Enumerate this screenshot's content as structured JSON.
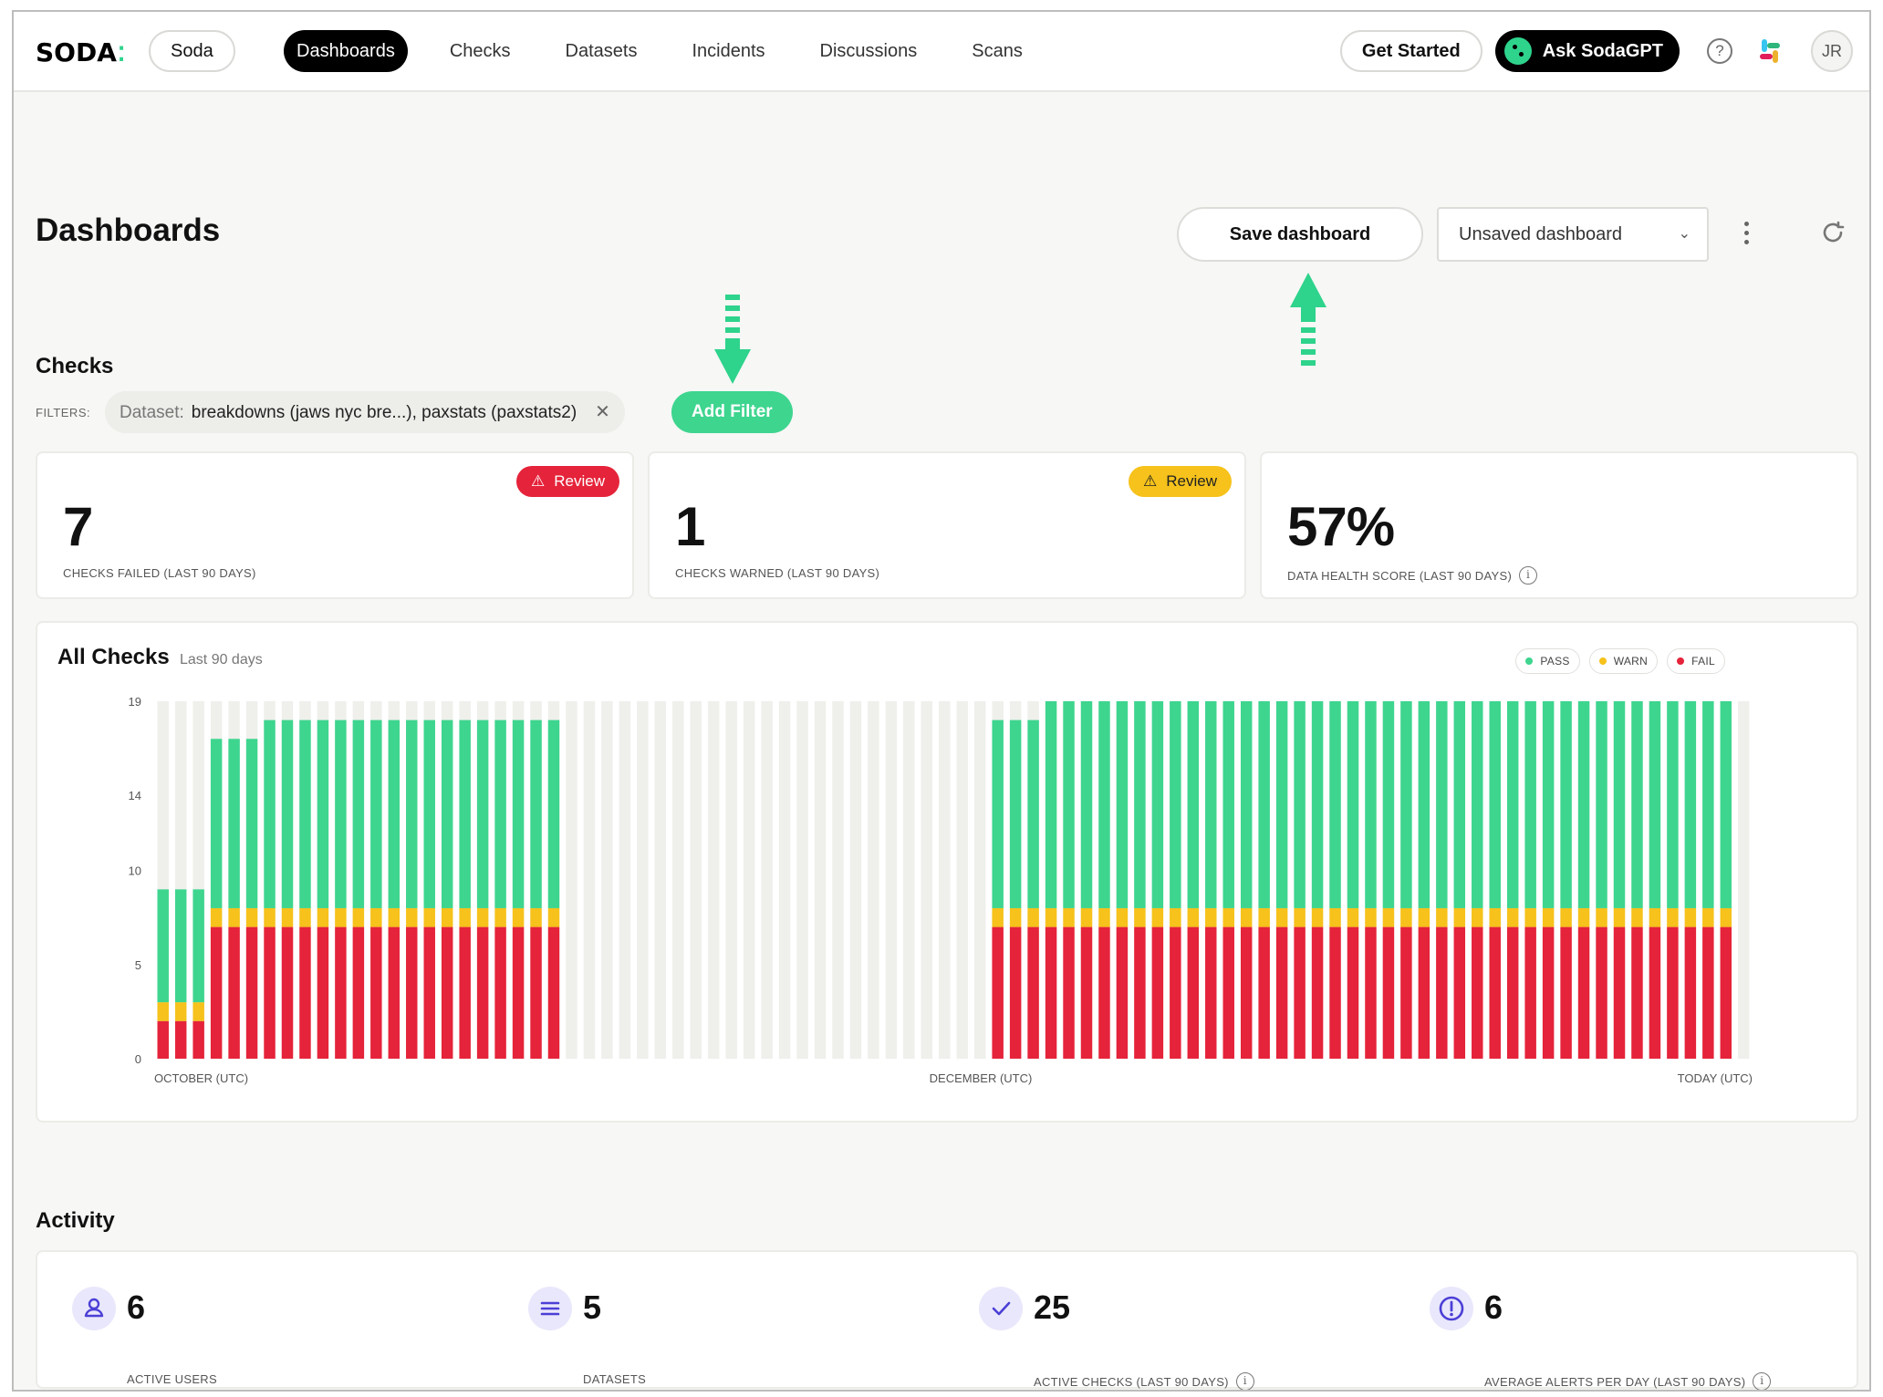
{
  "nav": {
    "logo": "SODA",
    "org": "Soda",
    "items": [
      {
        "label": "Dashboards",
        "active": true
      },
      {
        "label": "Checks",
        "active": false
      },
      {
        "label": "Datasets",
        "active": false
      },
      {
        "label": "Incidents",
        "active": false
      },
      {
        "label": "Discussions",
        "active": false
      },
      {
        "label": "Scans",
        "active": false
      }
    ],
    "get_started": "Get Started",
    "ask_gpt": "Ask SodaGPT",
    "avatar_initials": "JR",
    "icons": [
      "help-icon",
      "slack-icon"
    ]
  },
  "header": {
    "title": "Dashboards",
    "save_label": "Save dashboard",
    "dashboard_select": "Unsaved dashboard"
  },
  "checks": {
    "title": "Checks",
    "filters_label": "FILTERS:",
    "filter_key": "Dataset:",
    "filter_value": "breakdowns (jaws nyc bre...), paxstats (paxstats2)",
    "add_filter": "Add Filter",
    "metrics": [
      {
        "value": "7",
        "label": "CHECKS FAILED (LAST 90 DAYS)",
        "badge": "Review",
        "badge_color": "#e5233a"
      },
      {
        "value": "1",
        "label": "CHECKS WARNED (LAST 90 DAYS)",
        "badge": "Review",
        "badge_color": "#f6c21b"
      },
      {
        "value": "57%",
        "label": "DATA HEALTH SCORE (LAST 90 DAYS)"
      }
    ]
  },
  "chart": {
    "title": "All Checks",
    "subtitle": "Last 90 days",
    "legend": [
      {
        "label": "PASS",
        "color": "#3ed58f"
      },
      {
        "label": "WARN",
        "color": "#f6c21b"
      },
      {
        "label": "FAIL",
        "color": "#e5233a"
      }
    ]
  },
  "chart_data": {
    "type": "bar",
    "stacked": true,
    "y_ticks": [
      0,
      5,
      10,
      14,
      19
    ],
    "ylim": [
      0,
      19
    ],
    "x_tick_labels": [
      "OCTOBER (UTC)",
      "DECEMBER (UTC)",
      "TODAY (UTC)"
    ],
    "colors": {
      "pass": "#3ed58f",
      "warn": "#f6c21b",
      "fail": "#e5233a",
      "empty": "#efefec"
    },
    "days": 90,
    "series": [
      {
        "name": "PASS",
        "values": [
          6,
          6,
          6,
          9,
          9,
          9,
          10,
          10,
          10,
          10,
          10,
          10,
          10,
          10,
          10,
          10,
          10,
          10,
          10,
          10,
          10,
          10,
          10,
          0,
          0,
          0,
          0,
          0,
          0,
          0,
          0,
          0,
          0,
          0,
          0,
          0,
          0,
          0,
          0,
          0,
          0,
          0,
          0,
          0,
          0,
          0,
          0,
          10,
          10,
          10,
          11,
          11,
          11,
          11,
          11,
          11,
          11,
          11,
          11,
          11,
          11,
          11,
          11,
          11,
          11,
          11,
          11,
          11,
          11,
          11,
          11,
          11,
          11,
          11,
          11,
          11,
          11,
          11,
          11,
          11,
          11,
          11,
          11,
          11,
          11,
          11,
          11,
          11,
          11,
          0
        ]
      },
      {
        "name": "WARN",
        "values": [
          1,
          1,
          1,
          1,
          1,
          1,
          1,
          1,
          1,
          1,
          1,
          1,
          1,
          1,
          1,
          1,
          1,
          1,
          1,
          1,
          1,
          1,
          1,
          0,
          0,
          0,
          0,
          0,
          0,
          0,
          0,
          0,
          0,
          0,
          0,
          0,
          0,
          0,
          0,
          0,
          0,
          0,
          0,
          0,
          0,
          0,
          0,
          1,
          1,
          1,
          1,
          1,
          1,
          1,
          1,
          1,
          1,
          1,
          1,
          1,
          1,
          1,
          1,
          1,
          1,
          1,
          1,
          1,
          1,
          1,
          1,
          1,
          1,
          1,
          1,
          1,
          1,
          1,
          1,
          1,
          1,
          1,
          1,
          1,
          1,
          1,
          1,
          1,
          1,
          0
        ]
      },
      {
        "name": "FAIL",
        "values": [
          2,
          2,
          2,
          7,
          7,
          7,
          7,
          7,
          7,
          7,
          7,
          7,
          7,
          7,
          7,
          7,
          7,
          7,
          7,
          7,
          7,
          7,
          7,
          0,
          0,
          0,
          0,
          0,
          0,
          0,
          0,
          0,
          0,
          0,
          0,
          0,
          0,
          0,
          0,
          0,
          0,
          0,
          0,
          0,
          0,
          0,
          0,
          7,
          7,
          7,
          7,
          7,
          7,
          7,
          7,
          7,
          7,
          7,
          7,
          7,
          7,
          7,
          7,
          7,
          7,
          7,
          7,
          7,
          7,
          7,
          7,
          7,
          7,
          7,
          7,
          7,
          7,
          7,
          7,
          7,
          7,
          7,
          7,
          7,
          7,
          7,
          7,
          7,
          7,
          0
        ]
      }
    ]
  },
  "activity": {
    "title": "Activity",
    "items": [
      {
        "icon": "user-icon",
        "value": "6",
        "label": "ACTIVE USERS",
        "info": false
      },
      {
        "icon": "list-icon",
        "value": "5",
        "label": "DATASETS",
        "info": false
      },
      {
        "icon": "check-icon",
        "value": "25",
        "label": "ACTIVE CHECKS (LAST 90 DAYS)",
        "info": true
      },
      {
        "icon": "alert-icon",
        "value": "6",
        "label": "AVERAGE ALERTS PER DAY (LAST 90 DAYS)",
        "info": true
      }
    ]
  }
}
